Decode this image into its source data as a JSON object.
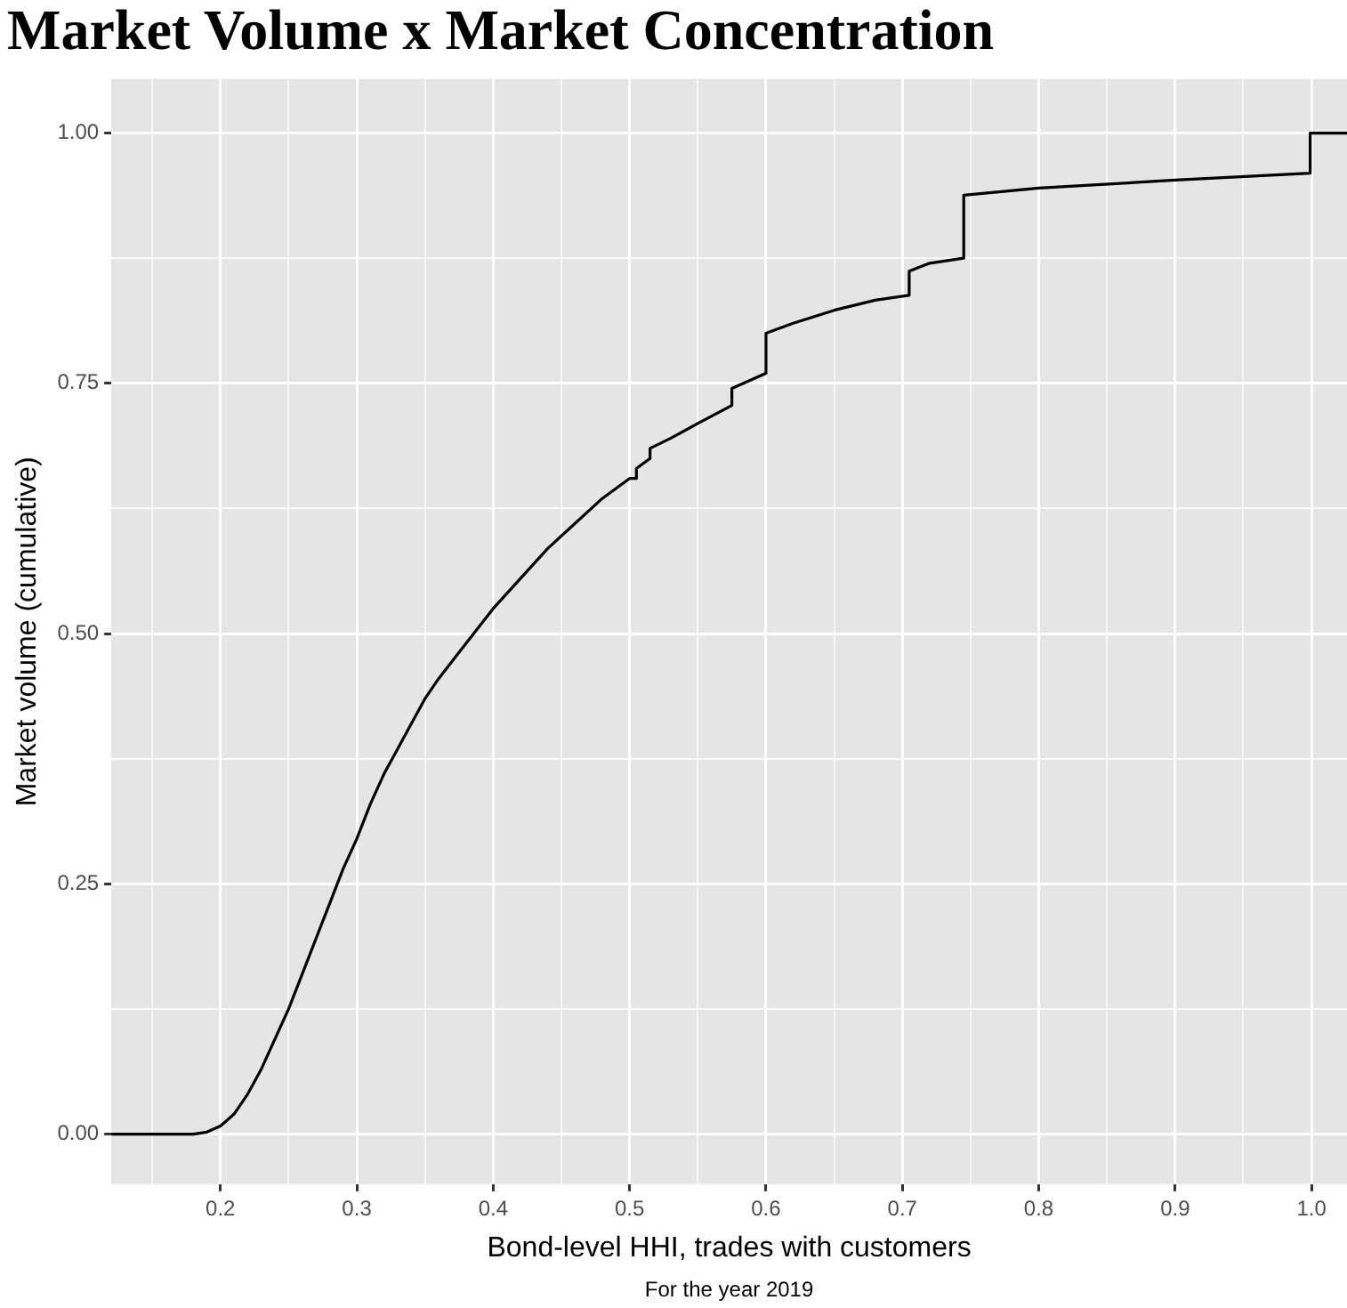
{
  "chart_data": {
    "type": "line",
    "title": "Market Volume x Market Concentration",
    "xlabel": "Bond-level HHI, trades with customers",
    "ylabel": "Market volume (cumulative)",
    "annotations": [
      "For the year 2019"
    ],
    "xlim": [
      0.12,
      1.026
    ],
    "ylim": [
      -0.05,
      1.054
    ],
    "xticks": [
      {
        "value": 0.15,
        "label": null
      },
      0.2,
      {
        "value": 0.25,
        "label": null
      },
      0.3,
      {
        "value": 0.35,
        "label": null
      },
      0.4,
      {
        "value": 0.45,
        "label": null
      },
      0.5,
      {
        "value": 0.55,
        "label": null
      },
      0.6,
      {
        "value": 0.65,
        "label": null
      },
      0.7,
      {
        "value": 0.75,
        "label": null
      },
      0.8,
      {
        "value": 0.85,
        "label": null
      },
      0.9,
      {
        "value": 0.95,
        "label": null
      },
      {
        "value": 1.0,
        "label": "1.0"
      }
    ],
    "yticks": [
      {
        "value": 0,
        "label": "0.00"
      },
      {
        "value": 0.125,
        "label": null
      },
      {
        "value": 0.25,
        "label": "0.25"
      },
      {
        "value": 0.375,
        "label": null
      },
      {
        "value": 0.5,
        "label": "0.50"
      },
      {
        "value": 0.625,
        "label": null
      },
      {
        "value": 0.75,
        "label": "0.75"
      },
      {
        "value": 0.875,
        "label": null
      },
      {
        "value": 1,
        "label": "1.00"
      }
    ],
    "grid": true,
    "legend": false,
    "marker": "none",
    "line_style": "solid",
    "series": [
      {
        "color": "#000000",
        "x": [
          0.12,
          0.18,
          0.19,
          0.2,
          0.21,
          0.22,
          0.23,
          0.24,
          0.25,
          0.26,
          0.27,
          0.28,
          0.29,
          0.3,
          0.31,
          0.32,
          0.33,
          0.34,
          0.35,
          0.36,
          0.38,
          0.4,
          0.42,
          0.44,
          0.46,
          0.48,
          0.5,
          0.505,
          0.505,
          0.515,
          0.515,
          0.53,
          0.55,
          0.575,
          0.575,
          0.6,
          0.6,
          0.62,
          0.65,
          0.68,
          0.705,
          0.705,
          0.72,
          0.745,
          0.745,
          0.8,
          0.9,
          0.999,
          0.999,
          1.026
        ],
        "values": [
          0,
          0,
          0.002,
          0.008,
          0.02,
          0.04,
          0.065,
          0.095,
          0.125,
          0.16,
          0.195,
          0.23,
          0.265,
          0.295,
          0.33,
          0.36,
          0.385,
          0.41,
          0.435,
          0.455,
          0.49,
          0.525,
          0.555,
          0.585,
          0.61,
          0.635,
          0.655,
          0.655,
          0.665,
          0.675,
          0.685,
          0.695,
          0.71,
          0.728,
          0.745,
          0.76,
          0.8,
          0.81,
          0.823,
          0.833,
          0.838,
          0.862,
          0.87,
          0.875,
          0.938,
          0.945,
          0.953,
          0.96,
          1.0,
          1.0
        ]
      }
    ]
  }
}
